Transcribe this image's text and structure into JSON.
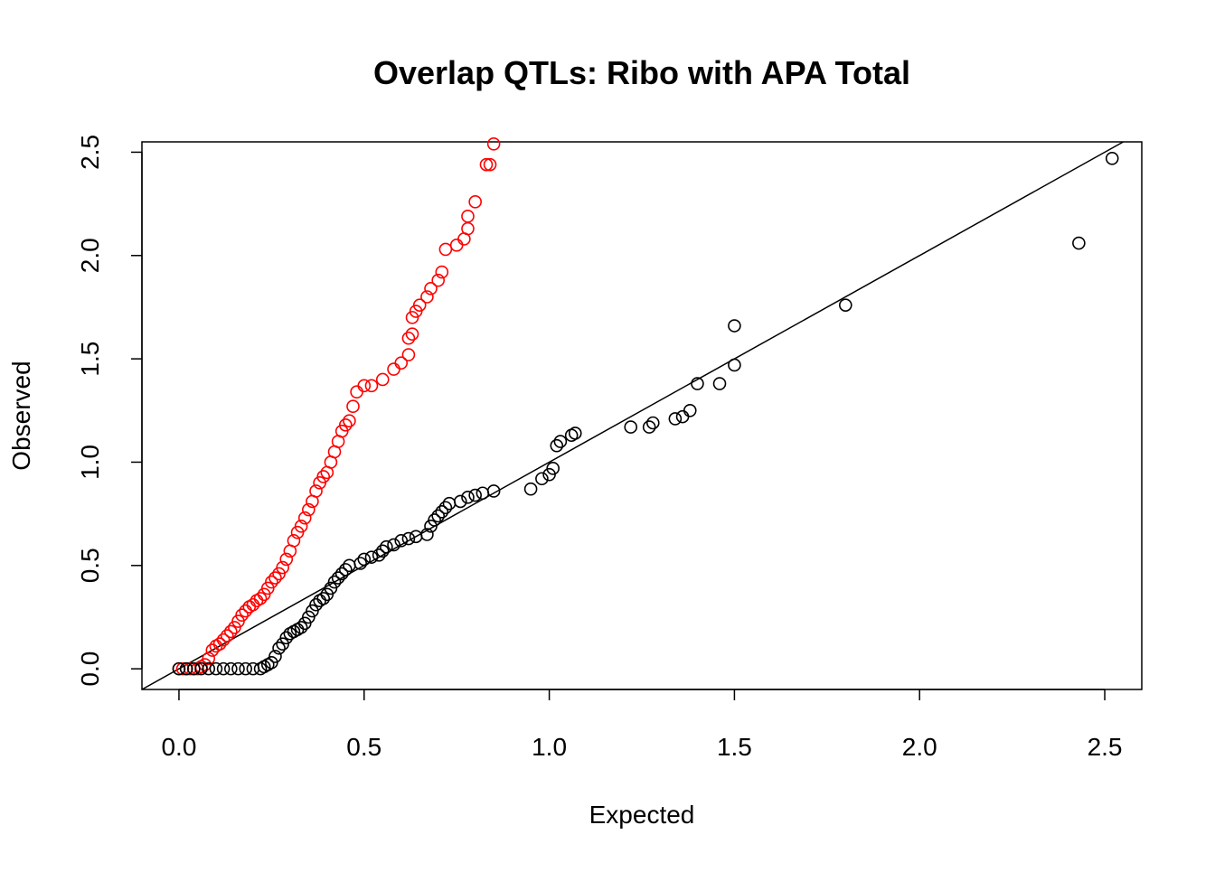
{
  "chart_data": {
    "type": "scatter",
    "title": "Overlap QTLs: Ribo with APA Total",
    "xlabel": "Expected",
    "ylabel": "Observed",
    "xlim": [
      -0.1,
      2.6
    ],
    "ylim": [
      -0.1,
      2.55
    ],
    "x_ticks": [
      "0.0",
      "0.5",
      "1.0",
      "1.5",
      "2.0",
      "2.5"
    ],
    "y_ticks": [
      "0.0",
      "0.5",
      "1.0",
      "1.5",
      "2.0",
      "2.5"
    ],
    "grid": false,
    "legend": "none",
    "reference_line": {
      "slope": 1,
      "intercept": 0
    },
    "colors": {
      "series_a": "#ff0000",
      "series_b": "#000000",
      "line": "#000000"
    },
    "series": [
      {
        "color": "#ff0000",
        "points": [
          [
            0.0,
            0.0
          ],
          [
            0.01,
            0.0
          ],
          [
            0.02,
            0.0
          ],
          [
            0.03,
            0.0
          ],
          [
            0.04,
            0.0
          ],
          [
            0.05,
            0.0
          ],
          [
            0.06,
            0.01
          ],
          [
            0.07,
            0.02
          ],
          [
            0.08,
            0.05
          ],
          [
            0.09,
            0.09
          ],
          [
            0.1,
            0.11
          ],
          [
            0.11,
            0.12
          ],
          [
            0.12,
            0.14
          ],
          [
            0.13,
            0.16
          ],
          [
            0.14,
            0.18
          ],
          [
            0.15,
            0.2
          ],
          [
            0.16,
            0.23
          ],
          [
            0.17,
            0.26
          ],
          [
            0.18,
            0.28
          ],
          [
            0.19,
            0.3
          ],
          [
            0.2,
            0.31
          ],
          [
            0.21,
            0.33
          ],
          [
            0.22,
            0.34
          ],
          [
            0.23,
            0.36
          ],
          [
            0.24,
            0.39
          ],
          [
            0.25,
            0.42
          ],
          [
            0.26,
            0.44
          ],
          [
            0.27,
            0.46
          ],
          [
            0.28,
            0.49
          ],
          [
            0.29,
            0.53
          ],
          [
            0.3,
            0.57
          ],
          [
            0.31,
            0.62
          ],
          [
            0.32,
            0.66
          ],
          [
            0.33,
            0.69
          ],
          [
            0.34,
            0.73
          ],
          [
            0.35,
            0.77
          ],
          [
            0.36,
            0.81
          ],
          [
            0.37,
            0.86
          ],
          [
            0.38,
            0.9
          ],
          [
            0.39,
            0.93
          ],
          [
            0.4,
            0.95
          ],
          [
            0.41,
            1.0
          ],
          [
            0.42,
            1.05
          ],
          [
            0.43,
            1.1
          ],
          [
            0.44,
            1.15
          ],
          [
            0.45,
            1.18
          ],
          [
            0.46,
            1.2
          ],
          [
            0.47,
            1.27
          ],
          [
            0.48,
            1.34
          ],
          [
            0.5,
            1.37
          ],
          [
            0.52,
            1.37
          ],
          [
            0.55,
            1.4
          ],
          [
            0.58,
            1.45
          ],
          [
            0.6,
            1.48
          ],
          [
            0.62,
            1.52
          ],
          [
            0.62,
            1.6
          ],
          [
            0.63,
            1.62
          ],
          [
            0.63,
            1.7
          ],
          [
            0.64,
            1.73
          ],
          [
            0.65,
            1.76
          ],
          [
            0.67,
            1.8
          ],
          [
            0.68,
            1.84
          ],
          [
            0.7,
            1.88
          ],
          [
            0.71,
            1.92
          ],
          [
            0.72,
            2.03
          ],
          [
            0.75,
            2.05
          ],
          [
            0.77,
            2.08
          ],
          [
            0.78,
            2.13
          ],
          [
            0.78,
            2.19
          ],
          [
            0.8,
            2.26
          ],
          [
            0.83,
            2.44
          ],
          [
            0.84,
            2.44
          ],
          [
            0.85,
            2.54
          ]
        ]
      },
      {
        "color": "#000000",
        "points": [
          [
            0.0,
            0.0
          ],
          [
            0.02,
            0.0
          ],
          [
            0.04,
            0.0
          ],
          [
            0.06,
            0.0
          ],
          [
            0.08,
            0.0
          ],
          [
            0.1,
            0.0
          ],
          [
            0.12,
            0.0
          ],
          [
            0.14,
            0.0
          ],
          [
            0.16,
            0.0
          ],
          [
            0.18,
            0.0
          ],
          [
            0.2,
            0.0
          ],
          [
            0.22,
            0.0
          ],
          [
            0.23,
            0.01
          ],
          [
            0.24,
            0.02
          ],
          [
            0.25,
            0.03
          ],
          [
            0.26,
            0.06
          ],
          [
            0.27,
            0.1
          ],
          [
            0.28,
            0.12
          ],
          [
            0.29,
            0.15
          ],
          [
            0.3,
            0.17
          ],
          [
            0.31,
            0.18
          ],
          [
            0.32,
            0.19
          ],
          [
            0.33,
            0.2
          ],
          [
            0.34,
            0.22
          ],
          [
            0.35,
            0.25
          ],
          [
            0.36,
            0.28
          ],
          [
            0.37,
            0.31
          ],
          [
            0.38,
            0.33
          ],
          [
            0.39,
            0.34
          ],
          [
            0.4,
            0.36
          ],
          [
            0.41,
            0.39
          ],
          [
            0.42,
            0.42
          ],
          [
            0.43,
            0.44
          ],
          [
            0.44,
            0.46
          ],
          [
            0.45,
            0.48
          ],
          [
            0.46,
            0.5
          ],
          [
            0.49,
            0.51
          ],
          [
            0.5,
            0.53
          ],
          [
            0.52,
            0.54
          ],
          [
            0.54,
            0.55
          ],
          [
            0.55,
            0.57
          ],
          [
            0.56,
            0.59
          ],
          [
            0.58,
            0.6
          ],
          [
            0.6,
            0.62
          ],
          [
            0.62,
            0.63
          ],
          [
            0.64,
            0.64
          ],
          [
            0.67,
            0.65
          ],
          [
            0.68,
            0.69
          ],
          [
            0.69,
            0.72
          ],
          [
            0.7,
            0.74
          ],
          [
            0.71,
            0.76
          ],
          [
            0.72,
            0.78
          ],
          [
            0.73,
            0.8
          ],
          [
            0.76,
            0.81
          ],
          [
            0.78,
            0.83
          ],
          [
            0.8,
            0.84
          ],
          [
            0.82,
            0.85
          ],
          [
            0.85,
            0.86
          ],
          [
            0.95,
            0.87
          ],
          [
            0.98,
            0.92
          ],
          [
            1.0,
            0.94
          ],
          [
            1.01,
            0.97
          ],
          [
            1.02,
            1.08
          ],
          [
            1.03,
            1.1
          ],
          [
            1.06,
            1.13
          ],
          [
            1.07,
            1.14
          ],
          [
            1.22,
            1.17
          ],
          [
            1.27,
            1.17
          ],
          [
            1.28,
            1.19
          ],
          [
            1.34,
            1.21
          ],
          [
            1.36,
            1.22
          ],
          [
            1.38,
            1.25
          ],
          [
            1.4,
            1.38
          ],
          [
            1.46,
            1.38
          ],
          [
            1.5,
            1.47
          ],
          [
            1.5,
            1.66
          ],
          [
            1.8,
            1.76
          ],
          [
            2.43,
            2.06
          ],
          [
            2.52,
            2.47
          ]
        ]
      }
    ]
  }
}
